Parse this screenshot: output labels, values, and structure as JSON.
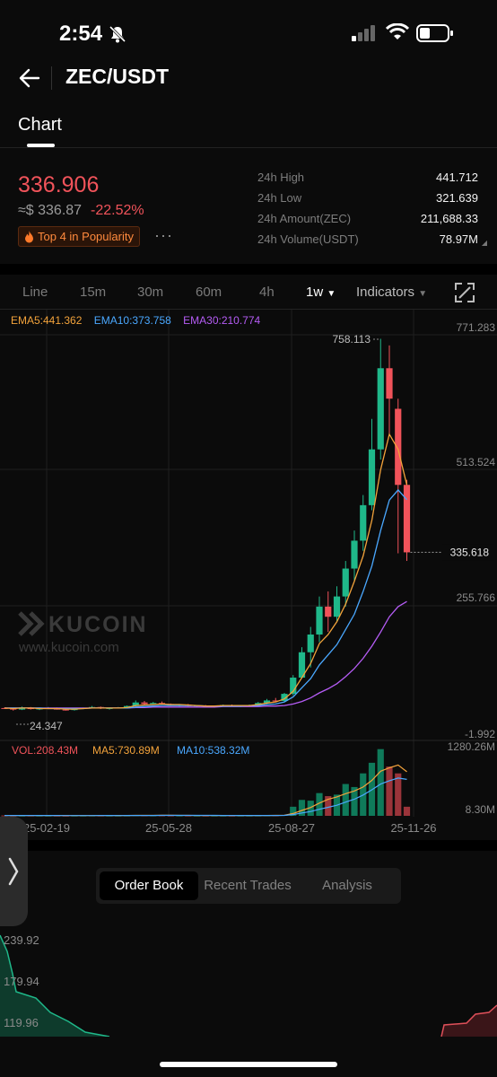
{
  "status": {
    "time": "2:54"
  },
  "nav": {
    "pair": "ZEC/USDT",
    "tab": "Chart"
  },
  "ticker": {
    "price": "336.906",
    "usd_price": "≈$ 336.87",
    "change": "-22.52%",
    "popularity": "Top 4 in Popularity",
    "more": "···",
    "stats": [
      {
        "label": "24h High",
        "value": "441.712"
      },
      {
        "label": "24h Low",
        "value": "321.639"
      },
      {
        "label": "24h Amount(ZEC)",
        "value": "211,688.33"
      },
      {
        "label": "24h Volume(USDT)",
        "value": "78.97M"
      }
    ]
  },
  "intervals": {
    "line": "Line",
    "m15": "15m",
    "m30": "30m",
    "m60": "60m",
    "h4": "4h",
    "active": "1w",
    "indicators": "Indicators"
  },
  "ema_legend": {
    "ema5": "EMA5:441.362",
    "ema10": "EMA10:373.758",
    "ema30": "EMA30:210.774"
  },
  "chart_data": {
    "type": "candlestick",
    "price_axis": [
      "771.283",
      "513.524",
      "255.766",
      "-1.992"
    ],
    "current_price_tag": "335.618",
    "max_label": "758.113",
    "min_label": "24.347",
    "volume_legend": {
      "vol": "VOL:208.43M",
      "ma5": "MA5:730.89M",
      "ma10": "MA10:538.32M"
    },
    "volume_axis": [
      "1280.26M",
      "8.30M"
    ],
    "x_labels": [
      "25-02-19",
      "25-05-28",
      "25-08-27",
      "25-11-26"
    ],
    "watermark": {
      "brand": "KUCOIN",
      "url": "www.kucoin.com"
    },
    "candles": [
      [
        30,
        31,
        28,
        29
      ],
      [
        29,
        30,
        25,
        27
      ],
      [
        27,
        33,
        26,
        31
      ],
      [
        31,
        32,
        27,
        28
      ],
      [
        28,
        30,
        26,
        29
      ],
      [
        29,
        32,
        28,
        30
      ],
      [
        30,
        31,
        27,
        27
      ],
      [
        27,
        29,
        25,
        26
      ],
      [
        26,
        30,
        25,
        29
      ],
      [
        29,
        31,
        28,
        30
      ],
      [
        30,
        34,
        29,
        32
      ],
      [
        32,
        33,
        28,
        29
      ],
      [
        29,
        31,
        27,
        30
      ],
      [
        30,
        32,
        29,
        31
      ],
      [
        31,
        35,
        30,
        34
      ],
      [
        34,
        45,
        33,
        41
      ],
      [
        41,
        44,
        36,
        38
      ],
      [
        38,
        42,
        36,
        40
      ],
      [
        40,
        43,
        37,
        38
      ],
      [
        38,
        39,
        34,
        36
      ],
      [
        36,
        38,
        33,
        37
      ],
      [
        37,
        38,
        33,
        34
      ],
      [
        34,
        36,
        32,
        35
      ],
      [
        35,
        36,
        31,
        32
      ],
      [
        32,
        35,
        31,
        34
      ],
      [
        34,
        37,
        33,
        36
      ],
      [
        36,
        37,
        33,
        34
      ],
      [
        34,
        36,
        32,
        35
      ],
      [
        35,
        37,
        34,
        36
      ],
      [
        36,
        42,
        35,
        40
      ],
      [
        40,
        48,
        38,
        45
      ],
      [
        45,
        50,
        42,
        44
      ],
      [
        44,
        60,
        43,
        58
      ],
      [
        58,
        95,
        55,
        90
      ],
      [
        90,
        150,
        88,
        140
      ],
      [
        140,
        190,
        110,
        175
      ],
      [
        175,
        250,
        160,
        230
      ],
      [
        230,
        260,
        180,
        210
      ],
      [
        210,
        270,
        200,
        250
      ],
      [
        250,
        320,
        230,
        305
      ],
      [
        305,
        380,
        280,
        360
      ],
      [
        360,
        450,
        340,
        430
      ],
      [
        430,
        600,
        420,
        540
      ],
      [
        540,
        758,
        520,
        700
      ],
      [
        700,
        745,
        570,
        640
      ],
      [
        620,
        640,
        335,
        470
      ],
      [
        470,
        480,
        320,
        337
      ]
    ],
    "ema5": [
      30,
      29,
      30,
      30,
      29,
      29,
      29,
      28,
      28,
      29,
      30,
      30,
      30,
      30,
      31,
      35,
      36,
      37,
      38,
      37,
      37,
      36,
      35,
      34,
      34,
      35,
      35,
      35,
      35,
      37,
      40,
      42,
      48,
      63,
      90,
      118,
      157,
      175,
      200,
      235,
      280,
      330,
      400,
      500,
      570,
      540,
      470
    ],
    "ema10": [
      30,
      30,
      30,
      30,
      30,
      29,
      29,
      29,
      29,
      29,
      30,
      30,
      30,
      30,
      30,
      32,
      33,
      34,
      35,
      35,
      35,
      35,
      35,
      34,
      34,
      34,
      34,
      34,
      35,
      35,
      37,
      38,
      42,
      52,
      70,
      88,
      115,
      135,
      155,
      185,
      215,
      260,
      310,
      380,
      440,
      460,
      441
    ],
    "ema30": [
      30,
      30,
      30,
      30,
      30,
      30,
      30,
      30,
      30,
      30,
      30,
      30,
      30,
      30,
      30,
      31,
      31,
      32,
      32,
      32,
      32,
      32,
      32,
      32,
      32,
      33,
      33,
      33,
      33,
      33,
      34,
      34,
      35,
      38,
      43,
      50,
      60,
      68,
      78,
      92,
      108,
      128,
      152,
      180,
      210,
      230,
      240
    ],
    "volume": [
      5,
      4,
      4,
      5,
      4,
      4,
      4,
      3,
      4,
      4,
      5,
      5,
      4,
      4,
      5,
      9,
      7,
      6,
      6,
      5,
      5,
      5,
      4,
      4,
      4,
      4,
      4,
      4,
      4,
      5,
      7,
      7,
      12,
      120,
      210,
      200,
      300,
      260,
      280,
      420,
      380,
      560,
      700,
      880,
      650,
      560,
      120
    ]
  },
  "bottom_tabs": {
    "order_book": "Order Book",
    "recent_trades": "Recent Trades",
    "analysis": "Analysis"
  },
  "depth": {
    "labels": [
      "239.92",
      "179.94",
      "119.96"
    ]
  }
}
